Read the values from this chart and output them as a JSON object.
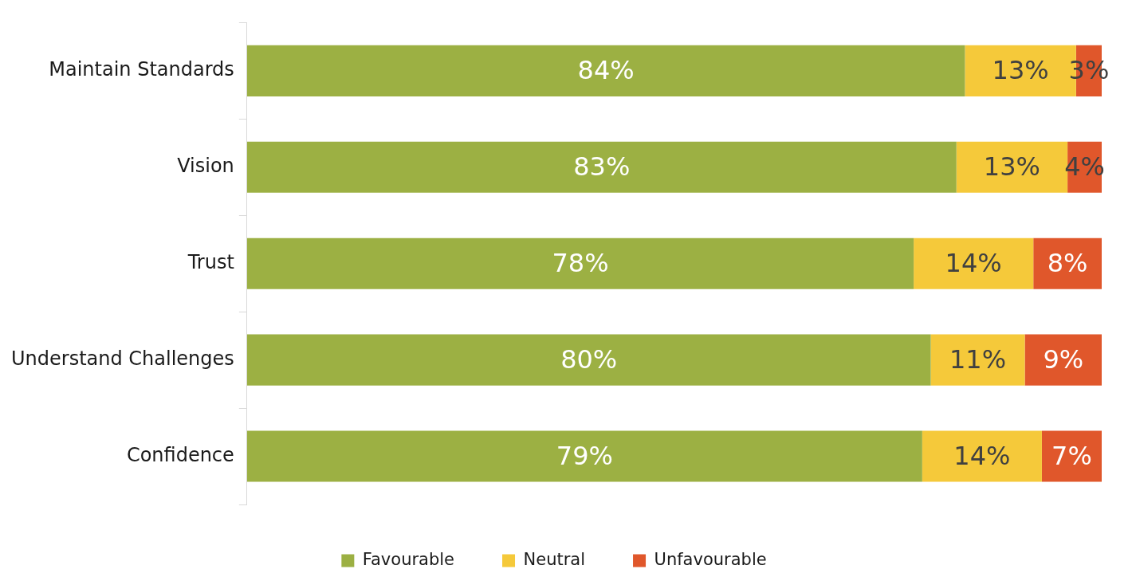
{
  "chart_data": {
    "type": "bar",
    "orientation": "horizontal",
    "stacked": true,
    "categories": [
      "Maintain Standards",
      "Vision",
      "Trust",
      "Understand Challenges",
      "Confidence"
    ],
    "series": [
      {
        "name": "Favourable",
        "color": "#9cb043",
        "values": [
          84,
          83,
          78,
          80,
          79
        ],
        "value_labels": [
          "84%",
          "83%",
          "78%",
          "80%",
          "79%"
        ]
      },
      {
        "name": "Neutral",
        "color": "#f5c93a",
        "values": [
          13,
          13,
          14,
          11,
          14
        ],
        "value_labels": [
          "13%",
          "13%",
          "14%",
          "11%",
          "14%"
        ]
      },
      {
        "name": "Unfavourable",
        "color": "#e0572b",
        "values": [
          3,
          4,
          8,
          9,
          7
        ],
        "value_labels": [
          "3%",
          "4%",
          "8%",
          "9%",
          "7%"
        ]
      }
    ],
    "xlim": [
      0,
      100
    ],
    "tick_labels": "y",
    "grid": false,
    "legend": "bottom"
  }
}
